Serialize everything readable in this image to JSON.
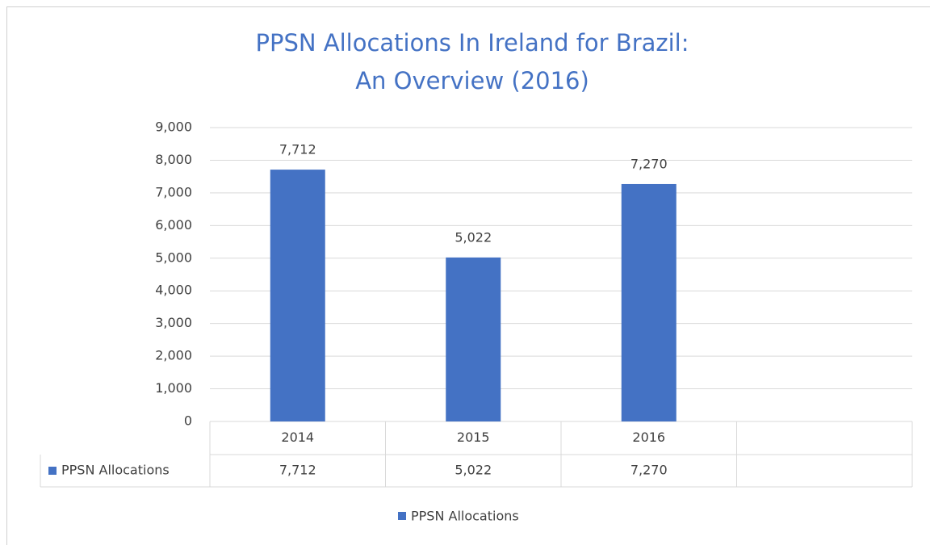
{
  "chart_data": {
    "type": "bar",
    "title": [
      "PPSN Allocations In Ireland for Brazil:",
      "An Overview (2016)"
    ],
    "categories": [
      "2014",
      "2015",
      "2016",
      null
    ],
    "series": [
      {
        "name": "PPSN Allocations",
        "color": "#4472c4",
        "values": [
          7712,
          5022,
          7270,
          null
        ],
        "value_labels": [
          "7,712",
          "5,022",
          "7,270",
          null
        ]
      }
    ],
    "ylim": [
      0,
      9000
    ],
    "yticks": [
      0,
      {
        "value": 1000,
        "label": "1,000"
      },
      {
        "value": 2000,
        "label": "2,000"
      },
      {
        "value": 3000,
        "label": "3,000"
      },
      {
        "value": 4000,
        "label": "4,000"
      },
      {
        "value": 5000,
        "label": "5,000"
      },
      {
        "value": 6000,
        "label": "6,000"
      },
      {
        "value": 7000,
        "label": "7,000"
      },
      {
        "value": 8000,
        "label": "8,000"
      },
      {
        "value": 9000,
        "label": "9,000"
      }
    ],
    "grid": true,
    "legend": "bottom"
  }
}
